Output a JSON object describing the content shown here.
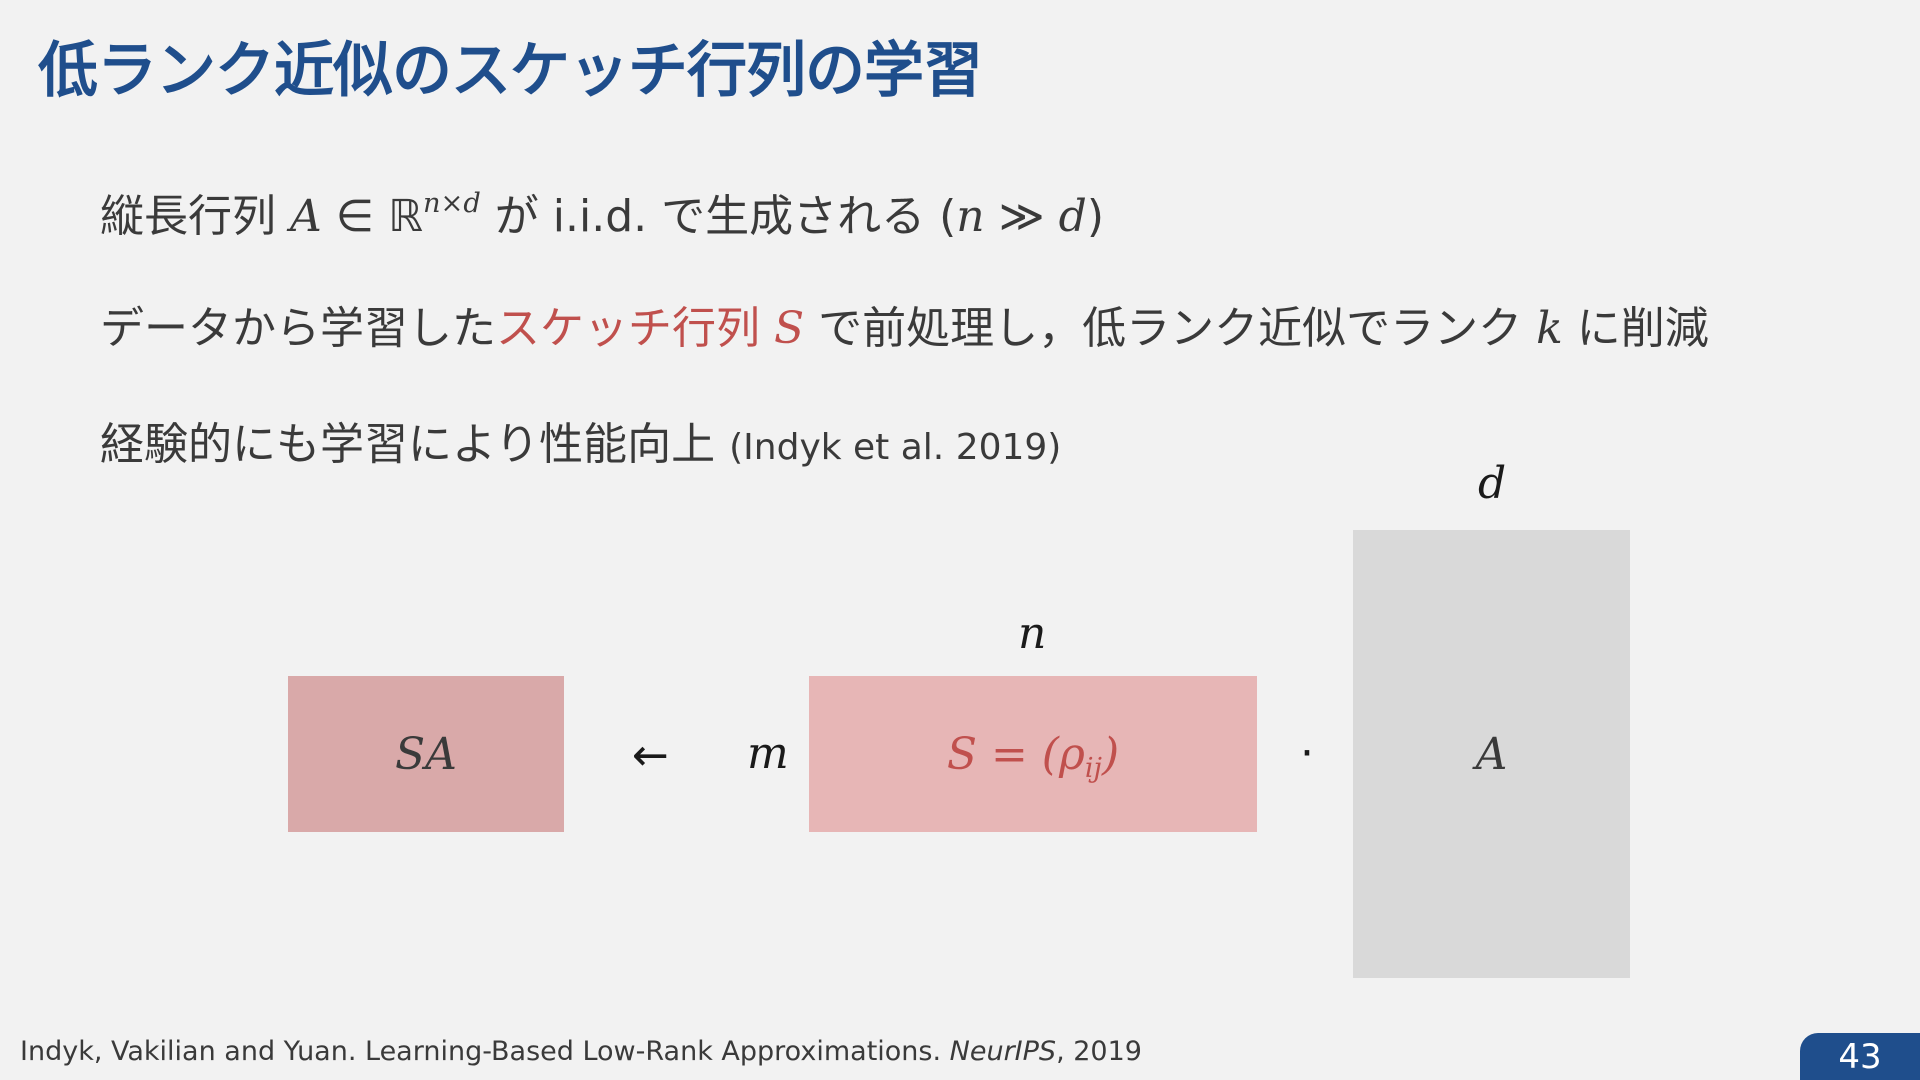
{
  "title": "低ランク近似のスケッチ行列の学習",
  "bullets": {
    "b1": {
      "pre": "縦長行列 ",
      "A": "A",
      "in": " ∈ ℝ",
      "exp": "n×d",
      "mid": " が i.i.d. で生成される (",
      "n": "n",
      "gg": " ≫ ",
      "d": "d",
      "post": ")"
    },
    "b2": {
      "pre": "データから学習した",
      "red_text": "スケッチ行列 ",
      "S": "S",
      "mid": " で前処理し，低ランク近似でランク ",
      "k": "k",
      "post": " に削減"
    },
    "b3": {
      "text": "経験的にも学習により性能向上 ",
      "cite": "(Indyk et al. 2019)"
    }
  },
  "diagram": {
    "sa_label": "SA",
    "arrow": "←",
    "m_label": "m",
    "s_label_pre": "S = (ρ",
    "s_label_sub": "ij",
    "s_label_post": ")",
    "n_label": "n",
    "dot": "·",
    "a_label": "A",
    "d_label": "d"
  },
  "footer": {
    "authors": "Indyk, Vakilian and Yuan. Learning-Based Low-Rank Approximations. ",
    "venue": "NeurIPS",
    "year": ", 2019"
  },
  "page_number": "43",
  "colors": {
    "title": "#1f4e8c",
    "highlight": "#c0504d",
    "box_sa": "#d9a9a9",
    "box_s": "#e7b6b6",
    "box_a": "#d9d9d9"
  }
}
